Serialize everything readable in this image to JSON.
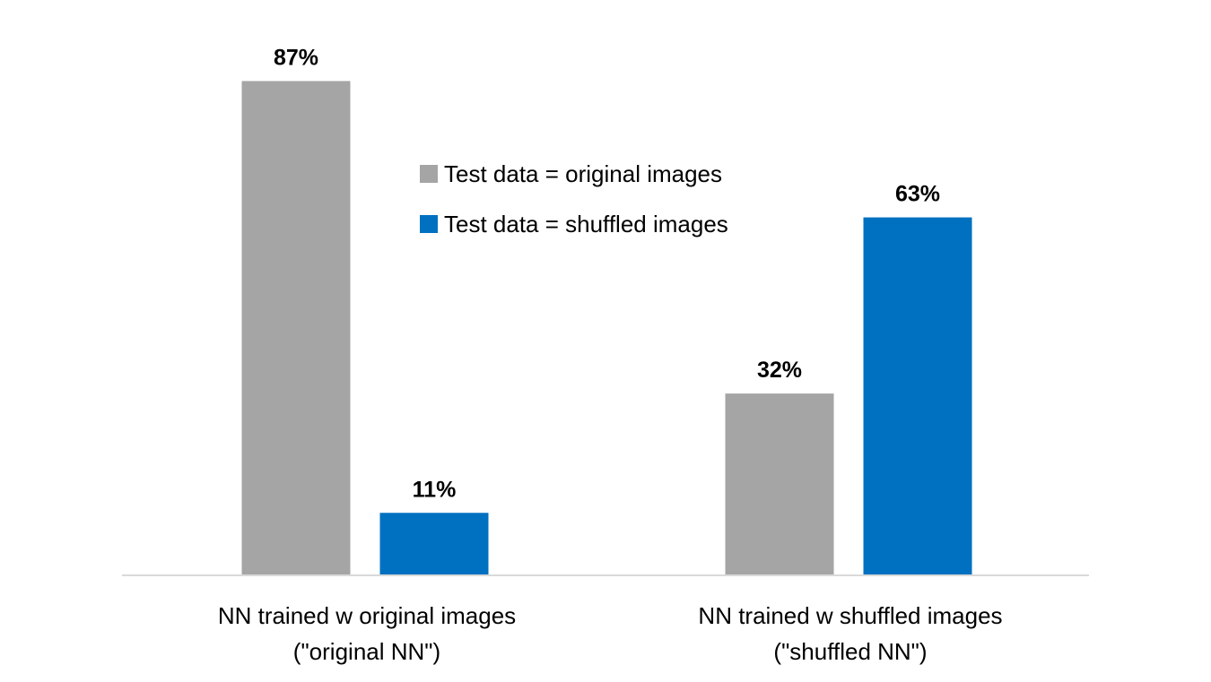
{
  "chart_data": {
    "type": "bar",
    "title": "",
    "xlabel": "",
    "ylabel": "",
    "ylim": [
      0,
      100
    ],
    "grid": false,
    "legend_position": "top-center",
    "categories": [
      [
        "NN trained w original images",
        "(\"original NN\")"
      ],
      [
        "NN trained w shuffled images",
        "(\"shuffled NN\")"
      ]
    ],
    "series": [
      {
        "name": "Test data = original images",
        "color": "#A5A5A5",
        "values": [
          87,
          32
        ],
        "labels": [
          "87%",
          "32%"
        ]
      },
      {
        "name": "Test data = shuffled images",
        "color": "#0070C0",
        "values": [
          11,
          63
        ],
        "labels": [
          "11%",
          "63%"
        ]
      }
    ],
    "axis_color": "#D9D9D9"
  }
}
